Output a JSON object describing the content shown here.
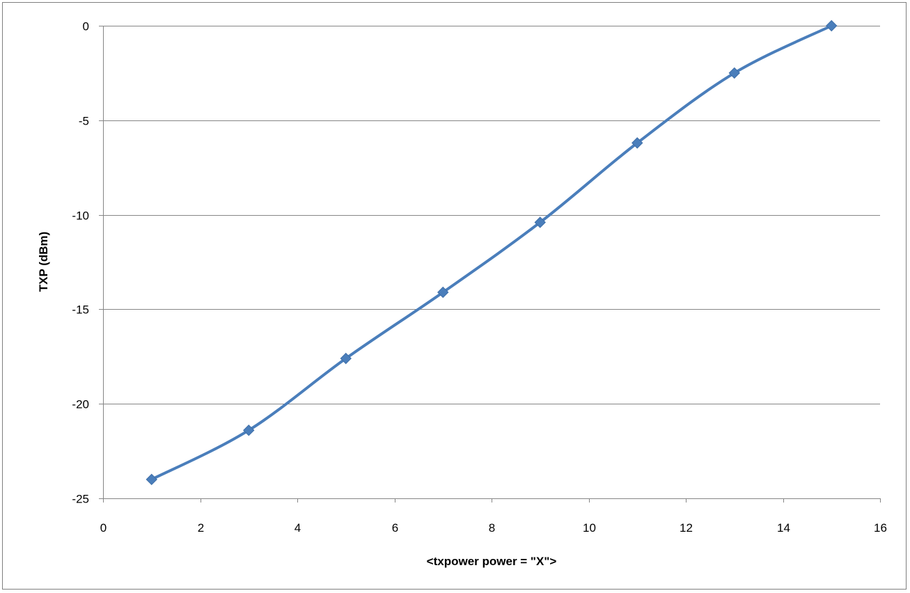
{
  "chart_data": {
    "type": "scatter",
    "title": "",
    "xlabel": "<txpower power = \"X\">",
    "ylabel": "TXP (dBm)",
    "xlim": [
      0,
      16
    ],
    "ylim": [
      -25,
      0
    ],
    "x_ticks": [
      0,
      2,
      4,
      6,
      8,
      10,
      12,
      14,
      16
    ],
    "y_ticks": [
      0,
      -5,
      -10,
      -15,
      -20,
      -25
    ],
    "grid": "horizontal",
    "legend": "none",
    "smooth_lines": true,
    "marker": "diamond",
    "color": "#4a7ebb",
    "series": [
      {
        "x": [
          1,
          3,
          5,
          7,
          9,
          11,
          13,
          15
        ],
        "y": [
          -24.0,
          -21.4,
          -17.6,
          -14.1,
          -10.4,
          -6.2,
          -2.5,
          0.0
        ]
      }
    ]
  }
}
